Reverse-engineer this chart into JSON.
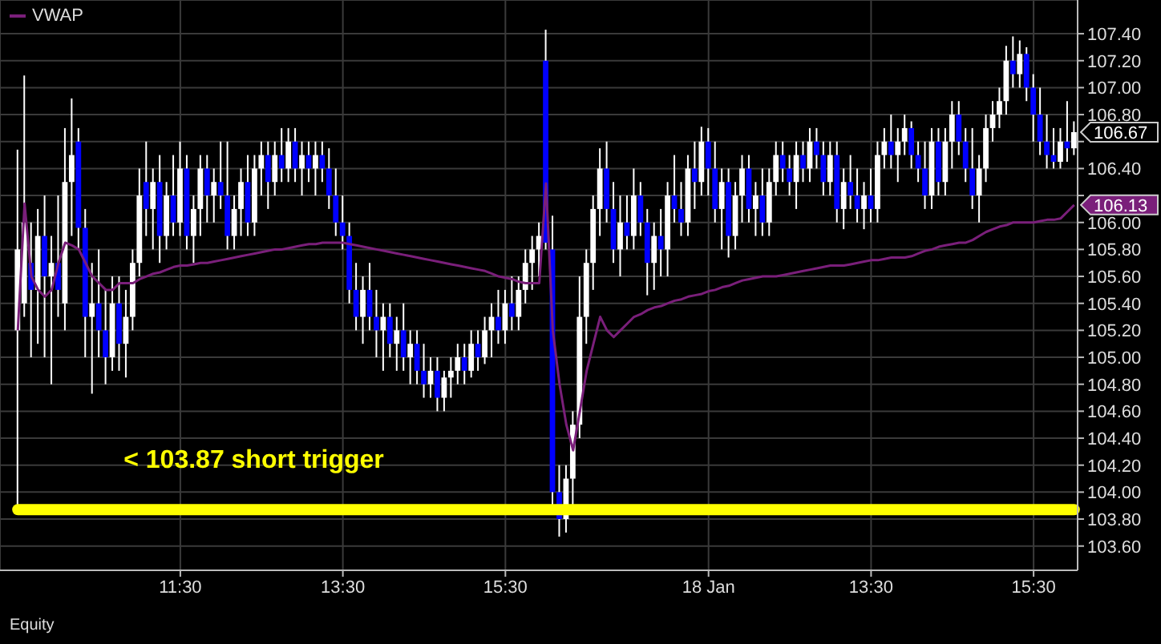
{
  "chart_data": {
    "type": "candlestick",
    "categories": [
      null,
      null,
      null,
      null,
      null,
      null,
      null,
      null,
      null,
      null,
      null,
      null,
      null,
      null,
      null,
      null,
      null,
      null,
      null,
      null,
      null,
      null,
      null,
      null,
      "11:30",
      null,
      null,
      null,
      null,
      null,
      null,
      null,
      null,
      null,
      null,
      null,
      null,
      null,
      null,
      null,
      null,
      null,
      null,
      null,
      null,
      null,
      null,
      null,
      "13:30",
      null,
      null,
      null,
      null,
      null,
      null,
      null,
      null,
      null,
      null,
      null,
      null,
      null,
      null,
      null,
      null,
      null,
      null,
      null,
      null,
      null,
      null,
      null,
      "15:30",
      null,
      null,
      null,
      null,
      null,
      null,
      null,
      null,
      null,
      null,
      null,
      null,
      null,
      null,
      null,
      null,
      null,
      null,
      null,
      null,
      null,
      null,
      null,
      null,
      null,
      null,
      null,
      null,
      null,
      "18 Jan",
      null,
      null,
      null,
      null,
      null,
      null,
      null,
      null,
      null,
      null,
      null,
      null,
      null,
      null,
      null,
      null,
      null,
      null,
      null,
      null,
      null,
      null,
      null,
      "13:30",
      null,
      null,
      null,
      null,
      null,
      null,
      null,
      null,
      null,
      null,
      null,
      null,
      null,
      null,
      null,
      null,
      null,
      null,
      null,
      null,
      null,
      null,
      null,
      "15:30",
      null,
      null,
      null,
      null,
      null,
      null
    ],
    "ohlc": [
      [
        105.2,
        106.54,
        103.88,
        105.8
      ],
      [
        105.4,
        107.09,
        105.3,
        106.0
      ],
      [
        105.7,
        106.0,
        105.0,
        105.5
      ],
      [
        105.5,
        106.1,
        105.1,
        105.9
      ],
      [
        105.9,
        106.2,
        105.0,
        105.6
      ],
      [
        105.6,
        105.9,
        104.8,
        105.7
      ],
      [
        105.7,
        106.2,
        105.3,
        105.5
      ],
      [
        105.4,
        106.7,
        105.2,
        106.3
      ],
      [
        106.3,
        106.92,
        105.9,
        106.5
      ],
      [
        106.6,
        106.7,
        105.8,
        105.96
      ],
      [
        105.96,
        106.1,
        105.0,
        105.3
      ],
      [
        105.3,
        105.7,
        104.73,
        105.4
      ],
      [
        105.4,
        105.8,
        105.0,
        105.2
      ],
      [
        105.2,
        105.5,
        104.8,
        105.0
      ],
      [
        105.0,
        105.6,
        104.9,
        105.4
      ],
      [
        105.4,
        105.6,
        104.9,
        105.1
      ],
      [
        105.1,
        105.5,
        104.85,
        105.3
      ],
      [
        105.3,
        105.8,
        105.2,
        105.7
      ],
      [
        105.7,
        106.4,
        105.6,
        106.2
      ],
      [
        106.3,
        106.6,
        105.9,
        106.1
      ],
      [
        106.1,
        106.4,
        105.8,
        106.3
      ],
      [
        106.3,
        106.5,
        105.7,
        105.9
      ],
      [
        105.9,
        106.3,
        105.8,
        106.2
      ],
      [
        106.2,
        106.5,
        105.9,
        106.0
      ],
      [
        106.0,
        106.6,
        105.9,
        106.4
      ],
      [
        106.4,
        106.5,
        105.8,
        105.9
      ],
      [
        105.9,
        106.2,
        105.7,
        106.1
      ],
      [
        106.1,
        106.5,
        105.9,
        106.4
      ],
      [
        106.4,
        106.5,
        106.0,
        106.2
      ],
      [
        106.2,
        106.4,
        106.0,
        106.3
      ],
      [
        106.3,
        106.6,
        106.1,
        106.2
      ],
      [
        106.2,
        106.6,
        105.8,
        105.9
      ],
      [
        105.9,
        106.2,
        105.8,
        106.1
      ],
      [
        106.1,
        106.4,
        105.9,
        106.3
      ],
      [
        106.3,
        106.5,
        105.9,
        106.0
      ],
      [
        106.0,
        106.5,
        105.9,
        106.4
      ],
      [
        106.4,
        106.6,
        106.2,
        106.5
      ],
      [
        106.5,
        106.6,
        106.1,
        106.3
      ],
      [
        106.3,
        106.6,
        106.2,
        106.5
      ],
      [
        106.5,
        106.7,
        106.3,
        106.4
      ],
      [
        106.4,
        106.7,
        106.3,
        106.6
      ],
      [
        106.6,
        106.7,
        106.3,
        106.4
      ],
      [
        106.4,
        106.6,
        106.2,
        106.5
      ],
      [
        106.5,
        106.6,
        106.3,
        106.4
      ],
      [
        106.4,
        106.6,
        106.2,
        106.5
      ],
      [
        106.5,
        106.6,
        106.3,
        106.4
      ],
      [
        106.4,
        106.55,
        106.1,
        106.2
      ],
      [
        106.2,
        106.4,
        105.9,
        106.0
      ],
      [
        106.0,
        106.2,
        105.8,
        105.9
      ],
      [
        105.9,
        106.0,
        105.4,
        105.5
      ],
      [
        105.5,
        105.7,
        105.2,
        105.3
      ],
      [
        105.3,
        105.6,
        105.1,
        105.5
      ],
      [
        105.5,
        105.7,
        105.2,
        105.3
      ],
      [
        105.3,
        105.5,
        105.0,
        105.2
      ],
      [
        105.2,
        105.4,
        104.9,
        105.3
      ],
      [
        105.3,
        105.4,
        105.0,
        105.1
      ],
      [
        105.1,
        105.3,
        104.9,
        105.2
      ],
      [
        105.2,
        105.4,
        104.9,
        105.0
      ],
      [
        105.0,
        105.2,
        104.8,
        105.1
      ],
      [
        105.1,
        105.2,
        104.8,
        104.9
      ],
      [
        104.9,
        105.1,
        104.7,
        104.8
      ],
      [
        104.8,
        105.0,
        104.7,
        104.9
      ],
      [
        104.9,
        105.0,
        104.6,
        104.7
      ],
      [
        104.7,
        104.9,
        104.6,
        104.85
      ],
      [
        104.85,
        105.0,
        104.7,
        104.9
      ],
      [
        104.9,
        105.1,
        104.8,
        105.0
      ],
      [
        105.0,
        105.1,
        104.8,
        104.9
      ],
      [
        104.9,
        105.2,
        104.85,
        105.1
      ],
      [
        105.1,
        105.2,
        104.9,
        105.0
      ],
      [
        105.0,
        105.3,
        104.95,
        105.2
      ],
      [
        105.2,
        105.4,
        105.0,
        105.3
      ],
      [
        105.3,
        105.5,
        105.1,
        105.2
      ],
      [
        105.2,
        105.5,
        105.1,
        105.4
      ],
      [
        105.4,
        105.6,
        105.2,
        105.3
      ],
      [
        105.3,
        105.6,
        105.2,
        105.5
      ],
      [
        105.5,
        105.8,
        105.4,
        105.7
      ],
      [
        105.7,
        105.9,
        105.5,
        105.8
      ],
      [
        105.8,
        106.0,
        105.6,
        105.9
      ],
      [
        107.2,
        107.43,
        105.8,
        105.85
      ],
      [
        105.8,
        106.05,
        103.9,
        104.0
      ],
      [
        104.0,
        104.2,
        103.67,
        103.8
      ],
      [
        103.8,
        104.2,
        103.7,
        104.1
      ],
      [
        104.1,
        104.6,
        103.9,
        104.5
      ],
      [
        104.5,
        105.6,
        104.4,
        105.3
      ],
      [
        105.3,
        105.8,
        105.1,
        105.7
      ],
      [
        105.7,
        106.2,
        105.5,
        106.1
      ],
      [
        106.1,
        106.55,
        105.9,
        106.4
      ],
      [
        106.4,
        106.6,
        106.0,
        106.1
      ],
      [
        106.1,
        106.3,
        105.7,
        105.8
      ],
      [
        105.8,
        106.2,
        105.6,
        106.0
      ],
      [
        106.0,
        106.2,
        105.8,
        105.9
      ],
      [
        105.9,
        106.4,
        105.8,
        106.2
      ],
      [
        106.2,
        106.3,
        105.9,
        106.0
      ],
      [
        106.0,
        106.1,
        105.46,
        105.7
      ],
      [
        105.7,
        106.0,
        105.5,
        105.9
      ],
      [
        105.9,
        106.1,
        105.6,
        105.8
      ],
      [
        105.8,
        106.3,
        105.6,
        106.2
      ],
      [
        106.2,
        106.5,
        106.0,
        106.1
      ],
      [
        106.1,
        106.3,
        105.9,
        106.0
      ],
      [
        106.0,
        106.5,
        105.9,
        106.4
      ],
      [
        106.4,
        106.6,
        106.1,
        106.3
      ],
      [
        106.3,
        106.71,
        106.2,
        106.6
      ],
      [
        106.6,
        106.7,
        106.2,
        106.4
      ],
      [
        106.4,
        106.6,
        106.0,
        106.1
      ],
      [
        106.1,
        106.4,
        105.8,
        106.3
      ],
      [
        106.3,
        106.4,
        105.74,
        105.9
      ],
      [
        105.9,
        106.3,
        105.8,
        106.2
      ],
      [
        106.2,
        106.5,
        106.0,
        106.4
      ],
      [
        106.4,
        106.5,
        106.0,
        106.1
      ],
      [
        106.1,
        106.3,
        105.9,
        106.2
      ],
      [
        106.2,
        106.4,
        105.9,
        106.0
      ],
      [
        106.0,
        106.4,
        105.9,
        106.3
      ],
      [
        106.3,
        106.6,
        106.2,
        106.5
      ],
      [
        106.5,
        106.6,
        106.3,
        106.4
      ],
      [
        106.4,
        106.5,
        106.2,
        106.3
      ],
      [
        106.3,
        106.6,
        106.1,
        106.5
      ],
      [
        106.5,
        106.6,
        106.3,
        106.4
      ],
      [
        106.4,
        106.7,
        106.3,
        106.6
      ],
      [
        106.6,
        106.7,
        106.4,
        106.5
      ],
      [
        106.5,
        106.6,
        106.2,
        106.3
      ],
      [
        106.3,
        106.6,
        106.2,
        106.5
      ],
      [
        106.5,
        106.6,
        106.0,
        106.1
      ],
      [
        106.1,
        106.4,
        105.95,
        106.3
      ],
      [
        106.3,
        106.5,
        106.1,
        106.2
      ],
      [
        106.2,
        106.4,
        106.0,
        106.1
      ],
      [
        106.1,
        106.3,
        105.95,
        106.2
      ],
      [
        106.2,
        106.4,
        106.0,
        106.1
      ],
      [
        106.1,
        106.6,
        106.0,
        106.5
      ],
      [
        106.5,
        106.7,
        106.4,
        106.6
      ],
      [
        106.6,
        106.8,
        106.4,
        106.5
      ],
      [
        106.5,
        106.7,
        106.3,
        106.6
      ],
      [
        106.6,
        106.8,
        106.5,
        106.7
      ],
      [
        106.7,
        106.75,
        106.4,
        106.5
      ],
      [
        106.5,
        106.6,
        106.3,
        106.4
      ],
      [
        106.4,
        106.6,
        106.1,
        106.2
      ],
      [
        106.2,
        106.7,
        106.1,
        106.6
      ],
      [
        106.6,
        106.7,
        106.2,
        106.3
      ],
      [
        106.3,
        106.7,
        106.2,
        106.6
      ],
      [
        106.6,
        106.9,
        106.4,
        106.8
      ],
      [
        106.8,
        106.9,
        106.5,
        106.6
      ],
      [
        106.6,
        106.7,
        106.3,
        106.4
      ],
      [
        106.4,
        106.7,
        106.1,
        106.2
      ],
      [
        106.2,
        106.5,
        106.0,
        106.4
      ],
      [
        106.4,
        106.8,
        106.3,
        106.7
      ],
      [
        106.7,
        106.9,
        106.6,
        106.8
      ],
      [
        106.8,
        107.0,
        106.7,
        106.9
      ],
      [
        106.9,
        107.31,
        106.8,
        107.2
      ],
      [
        107.2,
        107.38,
        107.0,
        107.1
      ],
      [
        107.1,
        107.35,
        107.0,
        107.25
      ],
      [
        107.25,
        107.3,
        106.9,
        107.0
      ],
      [
        107.0,
        107.1,
        106.6,
        106.8
      ],
      [
        106.8,
        107.0,
        106.5,
        106.6
      ],
      [
        106.6,
        106.8,
        106.4,
        106.5
      ],
      [
        106.5,
        106.7,
        106.4,
        106.45
      ],
      [
        106.45,
        106.7,
        106.4,
        106.6
      ],
      [
        106.6,
        106.9,
        106.45,
        106.55
      ],
      [
        106.55,
        106.75,
        106.5,
        106.67
      ]
    ],
    "series": [
      {
        "name": "VWAP",
        "type": "line",
        "color": "#7a1f7a",
        "value_labels": [
          null,
          null,
          null,
          null,
          null,
          null,
          null,
          null,
          null,
          null,
          null,
          null,
          null,
          null,
          null,
          null,
          null,
          null,
          null,
          null,
          null,
          null,
          null,
          null,
          null,
          null,
          null,
          null,
          null,
          null,
          null,
          null,
          null,
          null,
          null,
          null,
          null,
          null,
          null,
          null,
          null,
          null,
          null,
          null,
          null,
          null,
          null,
          null,
          null,
          null,
          null,
          null,
          null,
          null,
          null,
          null,
          null,
          null,
          null,
          null,
          null,
          null,
          null,
          null,
          null,
          null,
          null,
          null,
          null,
          null,
          null,
          null,
          null,
          null,
          null,
          null,
          null,
          null,
          null,
          null,
          null,
          null,
          null,
          null,
          null,
          null,
          null,
          null,
          null,
          null,
          null,
          null,
          null,
          null,
          null,
          null,
          null,
          null,
          null,
          null,
          null,
          null,
          null,
          null,
          null,
          null,
          null,
          null,
          null,
          null,
          null,
          null,
          null,
          null,
          null,
          null,
          null,
          null,
          null,
          null,
          null,
          null,
          null,
          null,
          null,
          null,
          null,
          null,
          null,
          null,
          null,
          null,
          null,
          null,
          null,
          null,
          null,
          null,
          null,
          null,
          null,
          null,
          null,
          null,
          null,
          null,
          null,
          null,
          null,
          null,
          null,
          null,
          null,
          null,
          null,
          null,
          "106.13"
        ],
        "values": [
          105.2,
          106.14,
          105.6,
          105.5,
          105.45,
          105.5,
          105.7,
          105.85,
          105.83,
          105.8,
          105.7,
          105.6,
          105.55,
          105.5,
          105.5,
          105.55,
          105.55,
          105.55,
          105.58,
          105.6,
          105.62,
          105.63,
          105.65,
          105.67,
          105.68,
          105.68,
          105.69,
          105.7,
          105.7,
          105.71,
          105.72,
          105.73,
          105.74,
          105.75,
          105.76,
          105.77,
          105.78,
          105.79,
          105.8,
          105.8,
          105.81,
          105.82,
          105.83,
          105.84,
          105.84,
          105.85,
          105.85,
          105.85,
          105.85,
          105.84,
          105.83,
          105.82,
          105.81,
          105.8,
          105.79,
          105.78,
          105.77,
          105.76,
          105.75,
          105.74,
          105.73,
          105.72,
          105.71,
          105.7,
          105.69,
          105.68,
          105.67,
          105.66,
          105.65,
          105.64,
          105.62,
          105.6,
          105.59,
          105.58,
          105.56,
          105.55,
          105.55,
          105.55,
          106.29,
          105.2,
          104.8,
          104.5,
          104.31,
          104.6,
          104.9,
          105.1,
          105.3,
          105.2,
          105.15,
          105.2,
          105.25,
          105.3,
          105.32,
          105.35,
          105.37,
          105.38,
          105.4,
          105.42,
          105.43,
          105.45,
          105.46,
          105.47,
          105.49,
          105.5,
          105.52,
          105.53,
          105.55,
          105.57,
          105.58,
          105.59,
          105.6,
          105.6,
          105.6,
          105.61,
          105.62,
          105.63,
          105.64,
          105.65,
          105.66,
          105.67,
          105.68,
          105.68,
          105.68,
          105.69,
          105.7,
          105.71,
          105.72,
          105.72,
          105.73,
          105.74,
          105.74,
          105.74,
          105.75,
          105.77,
          105.79,
          105.8,
          105.82,
          105.83,
          105.84,
          105.85,
          105.85,
          105.87,
          105.9,
          105.93,
          105.95,
          105.97,
          105.98,
          106.0,
          106.0,
          106.0,
          106.0,
          106.01,
          106.02,
          106.02,
          106.03,
          106.08,
          106.13
        ]
      }
    ],
    "ylim": [
      103.42,
      107.65
    ],
    "yticks": [
      {
        "value": 103.6,
        "label": "103.60"
      },
      {
        "value": 103.8,
        "label": "103.80"
      },
      {
        "value": 104.0,
        "label": "104.00"
      },
      {
        "value": 104.2,
        "label": "104.20"
      },
      {
        "value": 104.4,
        "label": "104.40"
      },
      {
        "value": 104.6,
        "label": "104.60"
      },
      {
        "value": 104.8,
        "label": "104.80"
      },
      {
        "value": 105.0,
        "label": "105.00"
      },
      {
        "value": 105.2,
        "label": "105.20"
      },
      {
        "value": 105.4,
        "label": "105.40"
      },
      {
        "value": 105.6,
        "label": "105.60"
      },
      {
        "value": 105.8,
        "label": "105.80"
      },
      {
        "value": 106.0,
        "label": "106.00"
      },
      {
        "value": 106.2,
        "label": null
      },
      {
        "value": 106.4,
        "label": "106.40"
      },
      {
        "value": 106.6,
        "label": null
      },
      {
        "value": 106.8,
        "label": "106.80"
      },
      {
        "value": 107.0,
        "label": "107.00"
      },
      {
        "value": 107.2,
        "label": "107.20"
      },
      {
        "value": 107.4,
        "label": "107.40"
      }
    ],
    "ref_lines": [
      {
        "axis": "y",
        "value": 103.87,
        "label": "< 103.87 short trigger",
        "color": "#ffff00"
      }
    ],
    "annotations": [
      "Equity"
    ],
    "value_labels": [
      null,
      null,
      null,
      null,
      null,
      null,
      null,
      null,
      null,
      null,
      null,
      null,
      null,
      null,
      null,
      null,
      null,
      null,
      null,
      null,
      null,
      null,
      null,
      null,
      null,
      null,
      null,
      null,
      null,
      null,
      null,
      null,
      null,
      null,
      null,
      null,
      null,
      null,
      null,
      null,
      null,
      null,
      null,
      null,
      null,
      null,
      null,
      null,
      null,
      null,
      null,
      null,
      null,
      null,
      null,
      null,
      null,
      null,
      null,
      null,
      null,
      null,
      null,
      null,
      null,
      null,
      null,
      null,
      null,
      null,
      null,
      null,
      null,
      null,
      null,
      null,
      null,
      null,
      null,
      null,
      null,
      null,
      null,
      null,
      null,
      null,
      null,
      null,
      null,
      null,
      null,
      null,
      null,
      null,
      null,
      null,
      null,
      null,
      null,
      null,
      null,
      null,
      null,
      null,
      null,
      null,
      null,
      null,
      null,
      null,
      null,
      null,
      null,
      null,
      null,
      null,
      null,
      null,
      null,
      null,
      null,
      null,
      null,
      null,
      null,
      null,
      null,
      null,
      null,
      null,
      null,
      null,
      null,
      null,
      null,
      null,
      null,
      null,
      null,
      null,
      null,
      null,
      null,
      null,
      null,
      null,
      null,
      null,
      null,
      null,
      null,
      null,
      null,
      null,
      null,
      null,
      "106.67"
    ],
    "grid": true,
    "legend": "top left"
  }
}
